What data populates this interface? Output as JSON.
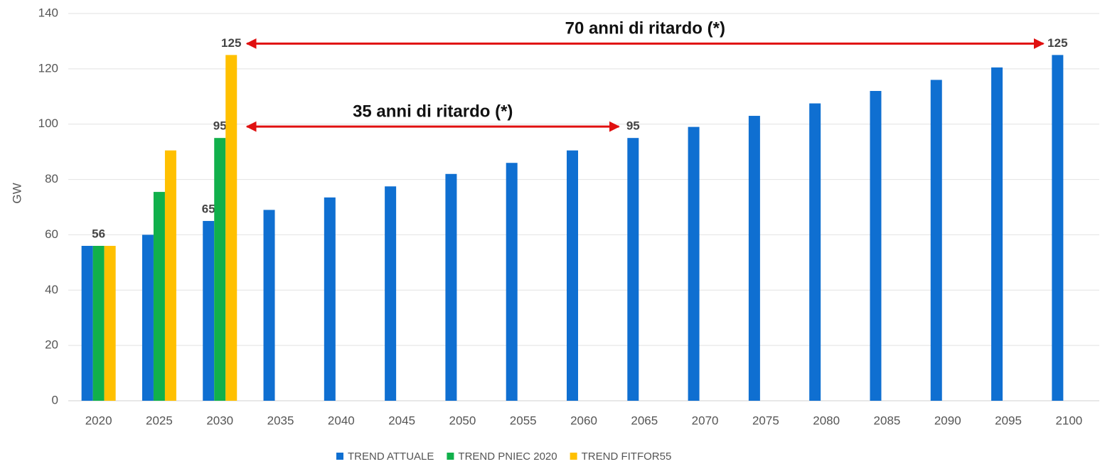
{
  "chart_data": {
    "type": "bar",
    "y_label": "GW",
    "categories": [
      "2020",
      "2025",
      "2030",
      "2035",
      "2040",
      "2045",
      "2050",
      "2055",
      "2060",
      "2065",
      "2070",
      "2075",
      "2080",
      "2085",
      "2090",
      "2095",
      "2100"
    ],
    "series": [
      {
        "name": "TREND ATTUALE",
        "color": "#0f6fd1",
        "values": [
          56,
          60,
          65,
          69,
          73.5,
          77.5,
          82,
          86,
          90.5,
          95,
          99,
          103,
          107.5,
          112,
          116,
          120.5,
          125
        ],
        "value_labels": [
          null,
          null,
          "65",
          null,
          null,
          null,
          null,
          null,
          null,
          "95",
          null,
          null,
          null,
          null,
          null,
          null,
          "125"
        ]
      },
      {
        "name": "TREND PNIEC 2020",
        "color": "#11b04b",
        "values": [
          56,
          75.5,
          95,
          null,
          null,
          null,
          null,
          null,
          null,
          null,
          null,
          null,
          null,
          null,
          null,
          null,
          null
        ],
        "value_labels": [
          "56",
          null,
          "95",
          null,
          null,
          null,
          null,
          null,
          null,
          null,
          null,
          null,
          null,
          null,
          null,
          null,
          null
        ]
      },
      {
        "name": "TREND FITFOR55",
        "color": "#ffc000",
        "values": [
          56,
          90.5,
          125,
          null,
          null,
          null,
          null,
          null,
          null,
          null,
          null,
          null,
          null,
          null,
          null,
          null,
          null
        ],
        "value_labels": [
          null,
          null,
          "125",
          null,
          null,
          null,
          null,
          null,
          null,
          null,
          null,
          null,
          null,
          null,
          null,
          null,
          null
        ]
      }
    ],
    "annotations": [
      {
        "text": "70 anni di ritardo (*)",
        "from": "2030",
        "to": "2100"
      },
      {
        "text": "35 anni di ritardo (*)",
        "from": "2030",
        "to": "2065"
      }
    ],
    "ylim": [
      0,
      140
    ],
    "yticks": [
      0,
      20,
      40,
      60,
      80,
      100,
      120,
      140
    ],
    "grid": true,
    "legend": "bottom"
  }
}
